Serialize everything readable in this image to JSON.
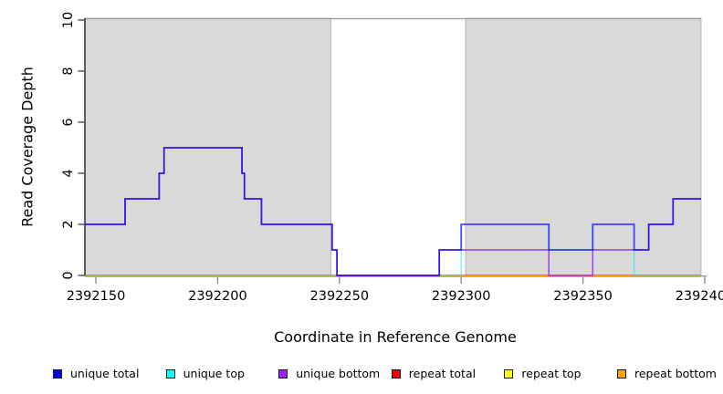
{
  "chart_data": {
    "type": "line",
    "subtype": "step-coverage",
    "title": "",
    "xlabel": "Coordinate in Reference Genome",
    "ylabel": "Read Coverage Depth",
    "xlim": [
      2392145,
      2392400
    ],
    "ylim": [
      0,
      10
    ],
    "grid": false,
    "legend_position": "bottom",
    "background_color": "#ffffff",
    "highlight_region_color": "#d9d9d9",
    "highlight_region_border": "#ababab",
    "shaded_regions": [
      {
        "x1": 2392145.5,
        "x2": 2392246.5
      },
      {
        "x1": 2392301.8,
        "x2": 2392398.5
      }
    ],
    "x_ticks": [
      2392150,
      2392200,
      2392250,
      2392300,
      2392350,
      2392400
    ],
    "x_tick_labels": [
      "2392150",
      "2392200",
      "2392250",
      "2392300",
      "2392350",
      "2392400"
    ],
    "y_ticks": [
      0,
      2,
      4,
      6,
      8,
      10
    ],
    "y_tick_labels": [
      "0",
      "2",
      "4",
      "6",
      "8",
      "10"
    ],
    "series": [
      {
        "name": "repeat total",
        "color": "#DD0000",
        "points": [
          [
            2392145.5,
            0
          ]
        ],
        "end": 2392398.5
      },
      {
        "name": "repeat top",
        "color": "#FFE800",
        "points": [
          [
            2392145.5,
            0
          ]
        ],
        "end": 2392398.5
      },
      {
        "name": "repeat bottom",
        "color": "#FF9100",
        "points": [
          [
            2392145.5,
            0
          ]
        ],
        "end": 2392398.5
      },
      {
        "name": "unique top",
        "color": "#00EEEE",
        "points": [
          [
            2392145.5,
            0
          ],
          [
            2392300,
            1
          ],
          [
            2392371,
            0
          ]
        ],
        "end": 2392398.5
      },
      {
        "name": "unique bottom",
        "color": "#A020F0",
        "points": [
          [
            2392145.5,
            2
          ],
          [
            2392162,
            3
          ],
          [
            2392176,
            4
          ],
          [
            2392178,
            5
          ],
          [
            2392210,
            4
          ],
          [
            2392211,
            3
          ],
          [
            2392218,
            2
          ],
          [
            2392247,
            1
          ],
          [
            2392249,
            0
          ],
          [
            2392291,
            1
          ],
          [
            2392336,
            0
          ],
          [
            2392354,
            1
          ],
          [
            2392377,
            2
          ],
          [
            2392387,
            3
          ]
        ],
        "end": 2392398.5
      },
      {
        "name": "unique total",
        "color": "#0000EE",
        "points": [
          [
            2392145.5,
            2
          ],
          [
            2392162,
            3
          ],
          [
            2392176,
            4
          ],
          [
            2392178,
            5
          ],
          [
            2392210,
            4
          ],
          [
            2392211,
            3
          ],
          [
            2392218,
            2
          ],
          [
            2392247,
            1
          ],
          [
            2392249,
            0
          ],
          [
            2392291,
            1
          ],
          [
            2392300,
            2
          ],
          [
            2392336,
            1
          ],
          [
            2392354,
            2
          ],
          [
            2392371,
            1
          ],
          [
            2392377,
            2
          ],
          [
            2392387,
            3
          ]
        ],
        "end": 2392398.5
      }
    ],
    "legend": [
      {
        "label": "unique total",
        "color": "#0000EE"
      },
      {
        "label": "unique top",
        "color": "#00FFFF"
      },
      {
        "label": "unique bottom",
        "color": "#A020F0"
      },
      {
        "label": "repeat total",
        "color": "#EE0000"
      },
      {
        "label": "repeat top",
        "color": "#FFFF00"
      },
      {
        "label": "repeat bottom",
        "color": "#FFA500"
      }
    ]
  }
}
